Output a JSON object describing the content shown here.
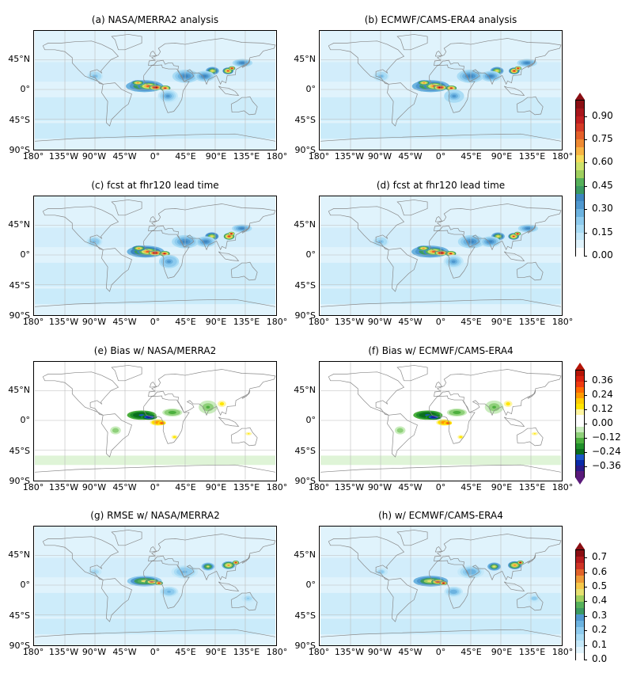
{
  "panels": [
    {
      "id": "a",
      "title": "(a) NASA/MERRA2 analysis",
      "kind": "aod"
    },
    {
      "id": "b",
      "title": "(b) ECMWF/CAMS-ERA4 analysis",
      "kind": "aod"
    },
    {
      "id": "c",
      "title": "(c) fcst at fhr120 lead time",
      "kind": "aod"
    },
    {
      "id": "d",
      "title": "(d) fcst at fhr120 lead time",
      "kind": "aod"
    },
    {
      "id": "e",
      "title": "(e) Bias w/ NASA/MERRA2",
      "kind": "bias"
    },
    {
      "id": "f",
      "title": "(f) Bias w/ ECMWF/CAMS-ERA4",
      "kind": "bias"
    },
    {
      "id": "g",
      "title": "(g) RMSE w/ NASA/MERRA2",
      "kind": "rmse"
    },
    {
      "id": "h",
      "title": "(h) w/ ECMWF/CAMS-ERA4",
      "kind": "rmse"
    }
  ],
  "lat_labels": [
    "45°N",
    "0°",
    "45°S",
    "90°S"
  ],
  "lon_labels": [
    "180°",
    "135°W",
    "90°W",
    "45°W",
    "0°",
    "45°E",
    "90°E",
    "135°E",
    "180°"
  ],
  "colorbars": {
    "aod": {
      "ticks": [
        "0.90",
        "0.75",
        "0.60",
        "0.45",
        "0.30",
        "0.15",
        "0.00"
      ],
      "values": [
        0.9,
        0.75,
        0.6,
        0.45,
        0.3,
        0.15,
        0.0
      ],
      "range": [
        0,
        1.0
      ],
      "colors": [
        "#ffffff",
        "#e0f3fc",
        "#c4e8f9",
        "#a9dcf5",
        "#8ecbee",
        "#6cb3e0",
        "#4f98cf",
        "#3d86c0",
        "#3b9a62",
        "#56b15a",
        "#9fcf5e",
        "#cde26b",
        "#f5dc5a",
        "#f7b444",
        "#ee8a33",
        "#e4602a",
        "#d43a26",
        "#c01f21",
        "#a8161c",
        "#8b0f14"
      ],
      "extend": "max"
    },
    "bias": {
      "ticks": [
        "0.36",
        "0.24",
        "0.12",
        "0.00",
        "−0.12",
        "−0.24",
        "−0.36"
      ],
      "values": [
        0.36,
        0.24,
        0.12,
        0.0,
        -0.12,
        -0.24,
        -0.36
      ],
      "range": [
        -0.45,
        0.45
      ],
      "colors": [
        "#5a1a7a",
        "#2b1a8a",
        "#0a2aa8",
        "#1a55c8",
        "#0a6e1e",
        "#1f8f2a",
        "#4caf3e",
        "#8fd07a",
        "#c9ecbd",
        "#ffffff",
        "#ffffff",
        "#fff6a0",
        "#ffe600",
        "#ffcc00",
        "#ff9a00",
        "#ff6a00",
        "#f03a10",
        "#d8200e",
        "#b51508"
      ],
      "extend": "both"
    },
    "rmse": {
      "ticks": [
        "0.7",
        "0.6",
        "0.5",
        "0.4",
        "0.3",
        "0.2",
        "0.1",
        "0.0"
      ],
      "values": [
        0.7,
        0.6,
        0.5,
        0.4,
        0.3,
        0.2,
        0.1,
        0.0
      ],
      "range": [
        0,
        0.75
      ],
      "colors": [
        "#ffffff",
        "#e0f3fc",
        "#c4e8f9",
        "#a9dcf5",
        "#8ecbee",
        "#6cb3e0",
        "#4f98cf",
        "#3b9a62",
        "#56b15a",
        "#9fcf5e",
        "#e6e070",
        "#f5c84a",
        "#ee9a38",
        "#e2632a",
        "#cf3426",
        "#b51b1e",
        "#8b0f14"
      ],
      "extend": "max"
    }
  },
  "colors": {
    "land_outline": "#888888",
    "grid": "#bbbbbb",
    "ocean_bg": "#d9eff9"
  }
}
